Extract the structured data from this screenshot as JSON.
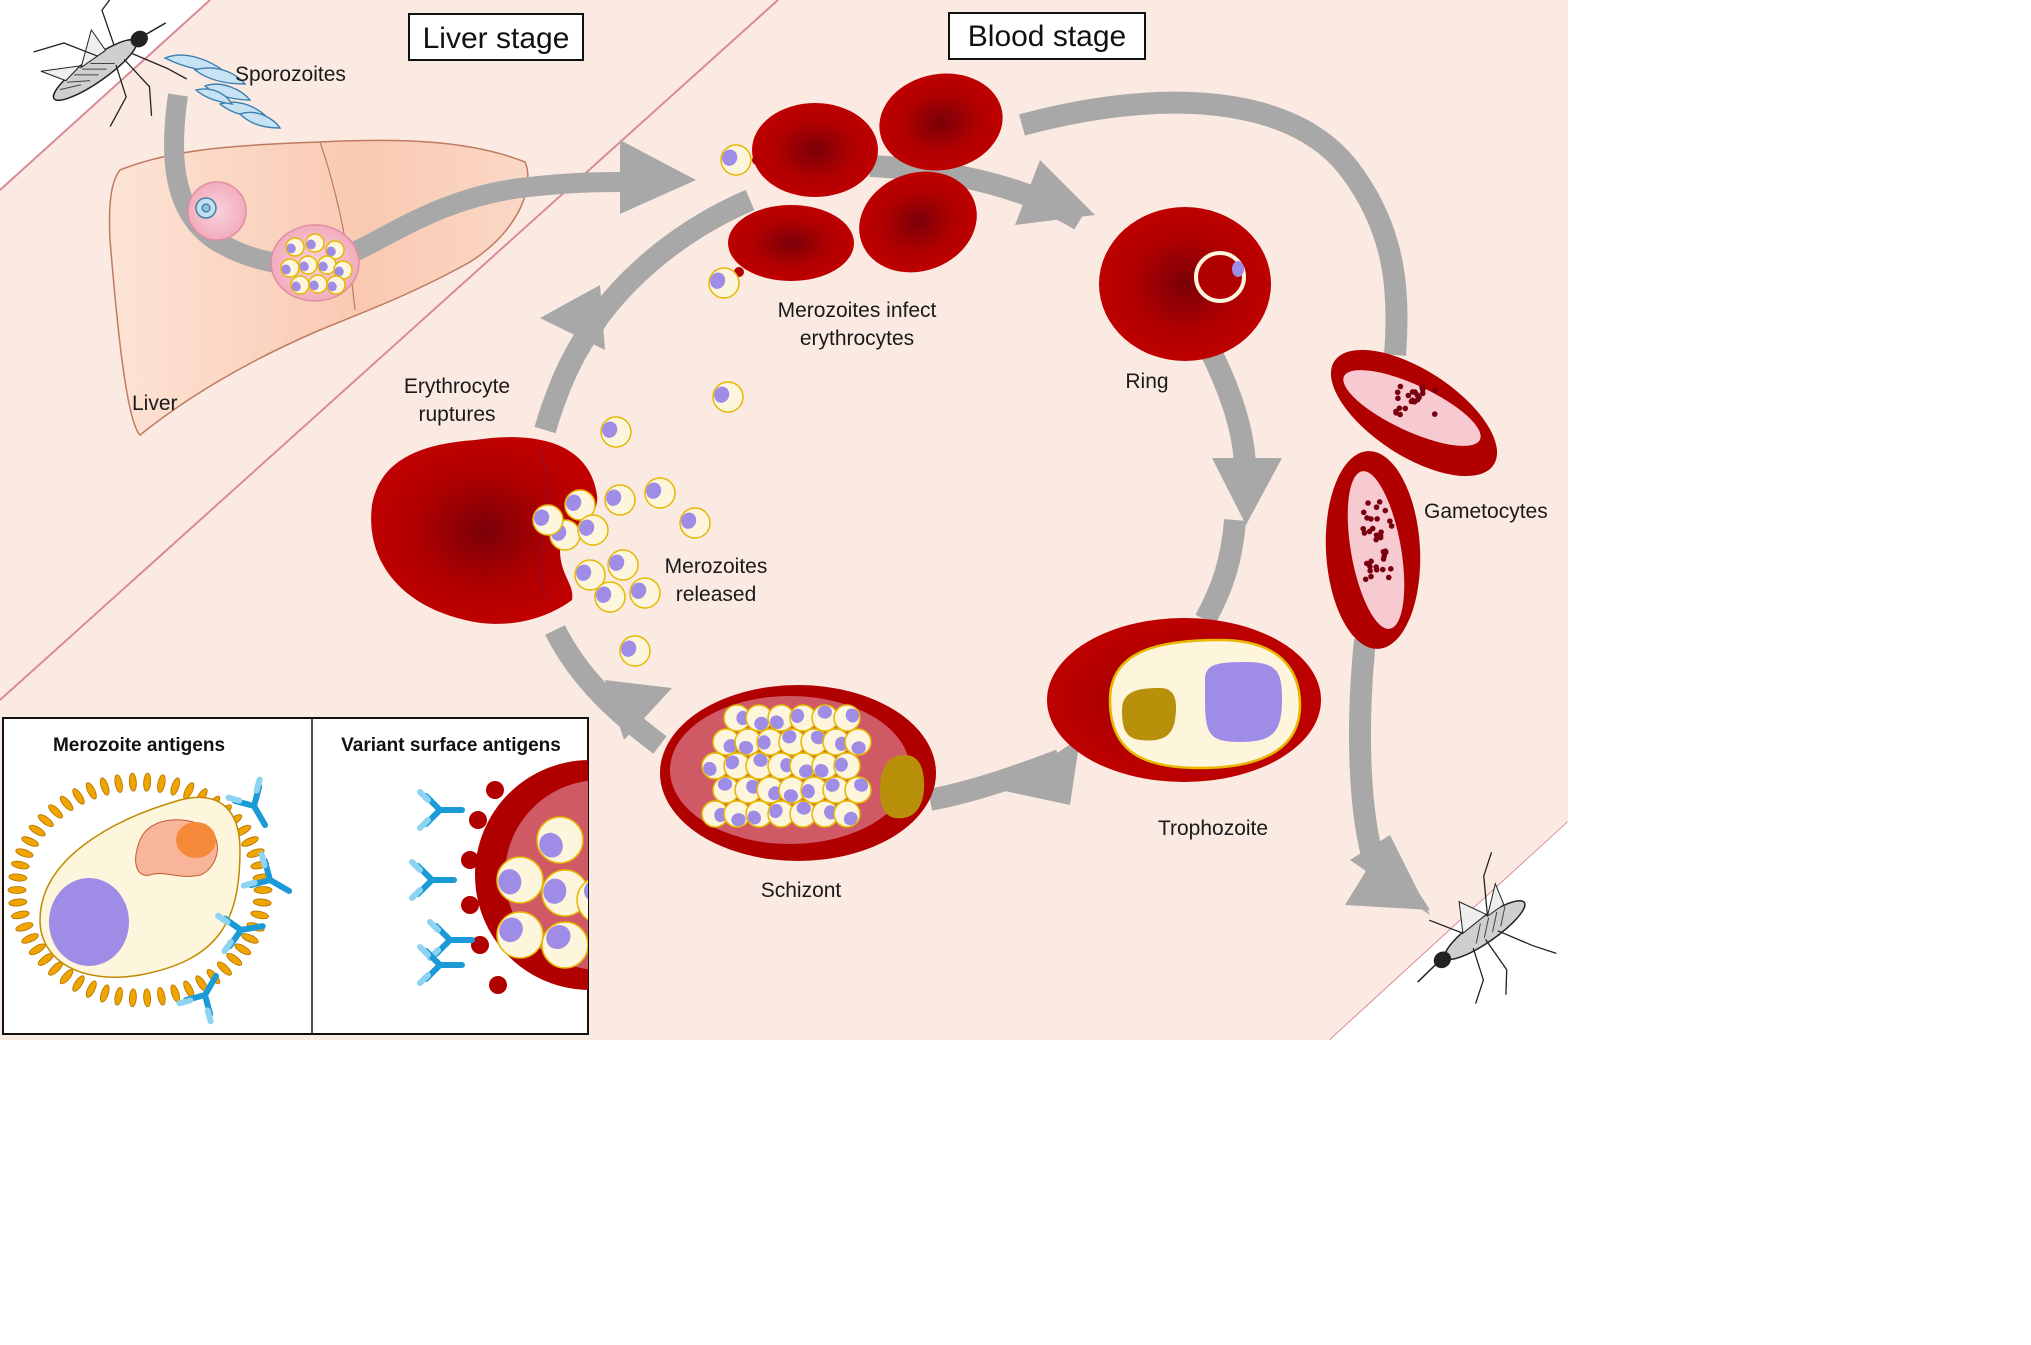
{
  "titles": {
    "liver_stage": "Liver stage",
    "blood_stage": "Blood stage"
  },
  "labels": {
    "sporozoites": "Sporozoites",
    "liver": "Liver",
    "merozoites_infect_1": "Merozoites infect",
    "merozoites_infect_2": "erythrocytes",
    "ring": "Ring",
    "gametocytes": "Gametocytes",
    "erythrocyte_ruptures_1": "Erythrocyte",
    "erythrocyte_ruptures_2": "ruptures",
    "merozoites_released_1": "Merozoites",
    "merozoites_released_2": "released",
    "trophozoite": "Trophozoite",
    "schizont": "Schizont"
  },
  "inset": {
    "left_title": "Merozoite antigens",
    "right_title": "Variant surface antigens"
  },
  "colors": {
    "background_band": "#fbeae2",
    "band_line": "#d98a9a",
    "arrow": "#a8a8a8",
    "rbc": "#b30000",
    "rbc_center": "#7a0008",
    "merozoite": "#fdf5dc",
    "merozoite_rim": "#e6b800",
    "nucleus": "#9f8ce6",
    "antibody": "#1a9ad6",
    "pigment": "#b8900a"
  },
  "icons": {
    "mosquito_top": "mosquito-icon",
    "mosquito_bottom": "mosquito-icon"
  }
}
